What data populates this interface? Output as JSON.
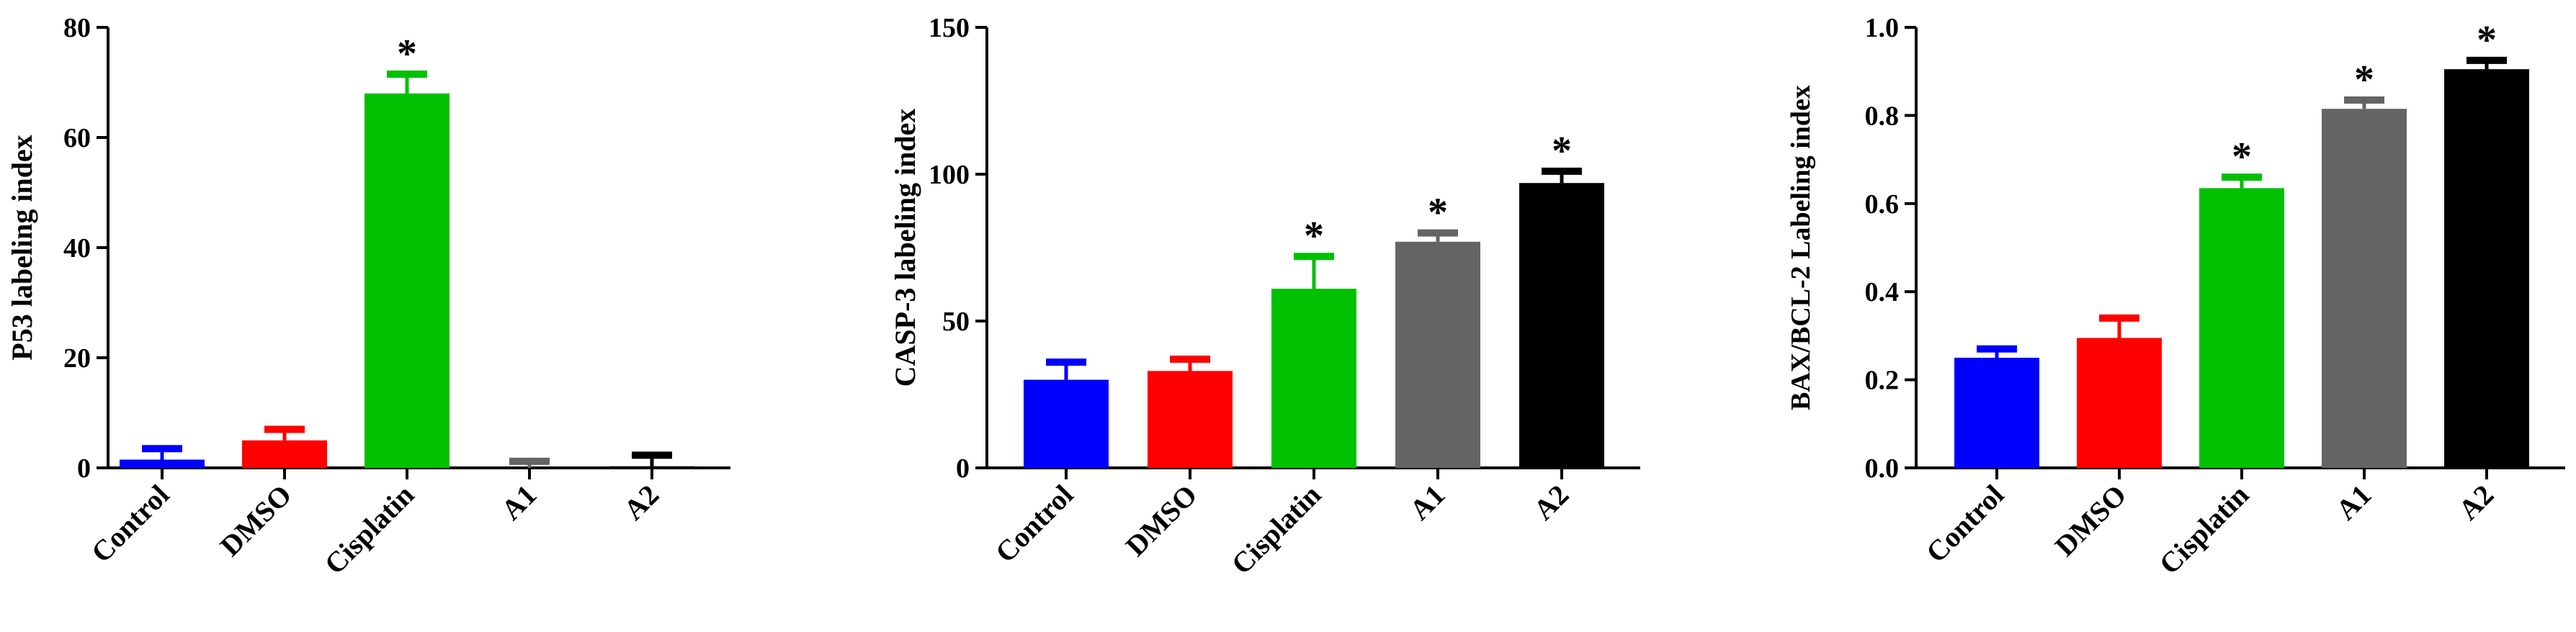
{
  "chart_data": [
    {
      "type": "bar",
      "ylabel": "P53 labeling index",
      "ylim": [
        0,
        80
      ],
      "yticks": [
        0,
        20,
        40,
        60,
        80
      ],
      "categories": [
        "Control",
        "DMSO",
        "Cisplatin",
        "A1",
        "A2"
      ],
      "values": [
        1.5,
        5,
        68,
        0,
        0.3
      ],
      "errors": [
        2,
        2,
        3.5,
        1.2,
        2
      ],
      "colors": [
        "#0000ff",
        "#ff0000",
        "#00c000",
        "#646464",
        "#000000"
      ],
      "significance": [
        "",
        "",
        "*",
        "",
        ""
      ]
    },
    {
      "type": "bar",
      "ylabel": "CASP-3 labeling index",
      "ylim": [
        0,
        150
      ],
      "yticks": [
        0,
        50,
        100,
        150
      ],
      "categories": [
        "Control",
        "DMSO",
        "Cisplatin",
        "A1",
        "A2"
      ],
      "values": [
        30,
        33,
        61,
        77,
        97
      ],
      "errors": [
        6,
        4,
        11,
        3,
        4
      ],
      "colors": [
        "#0000ff",
        "#ff0000",
        "#00c000",
        "#646464",
        "#000000"
      ],
      "significance": [
        "",
        "",
        "*",
        "*",
        "*"
      ]
    },
    {
      "type": "bar",
      "ylabel": "BAX/BCL-2 Labeling index",
      "ylim": [
        0,
        1.0
      ],
      "yticks": [
        0.0,
        0.2,
        0.4,
        0.6,
        0.8,
        1.0
      ],
      "yticklabels": [
        "0.0",
        "0.2",
        "0.4",
        "0.6",
        "0.8",
        "1.0"
      ],
      "categories": [
        "Control",
        "DMSO",
        "Cisplatin",
        "A1",
        "A2"
      ],
      "values": [
        0.25,
        0.295,
        0.635,
        0.815,
        0.905
      ],
      "errors": [
        0.02,
        0.045,
        0.025,
        0.02,
        0.02
      ],
      "colors": [
        "#0000ff",
        "#ff0000",
        "#00c000",
        "#646464",
        "#000000"
      ],
      "significance": [
        "",
        "",
        "*",
        "*",
        "*"
      ]
    }
  ]
}
